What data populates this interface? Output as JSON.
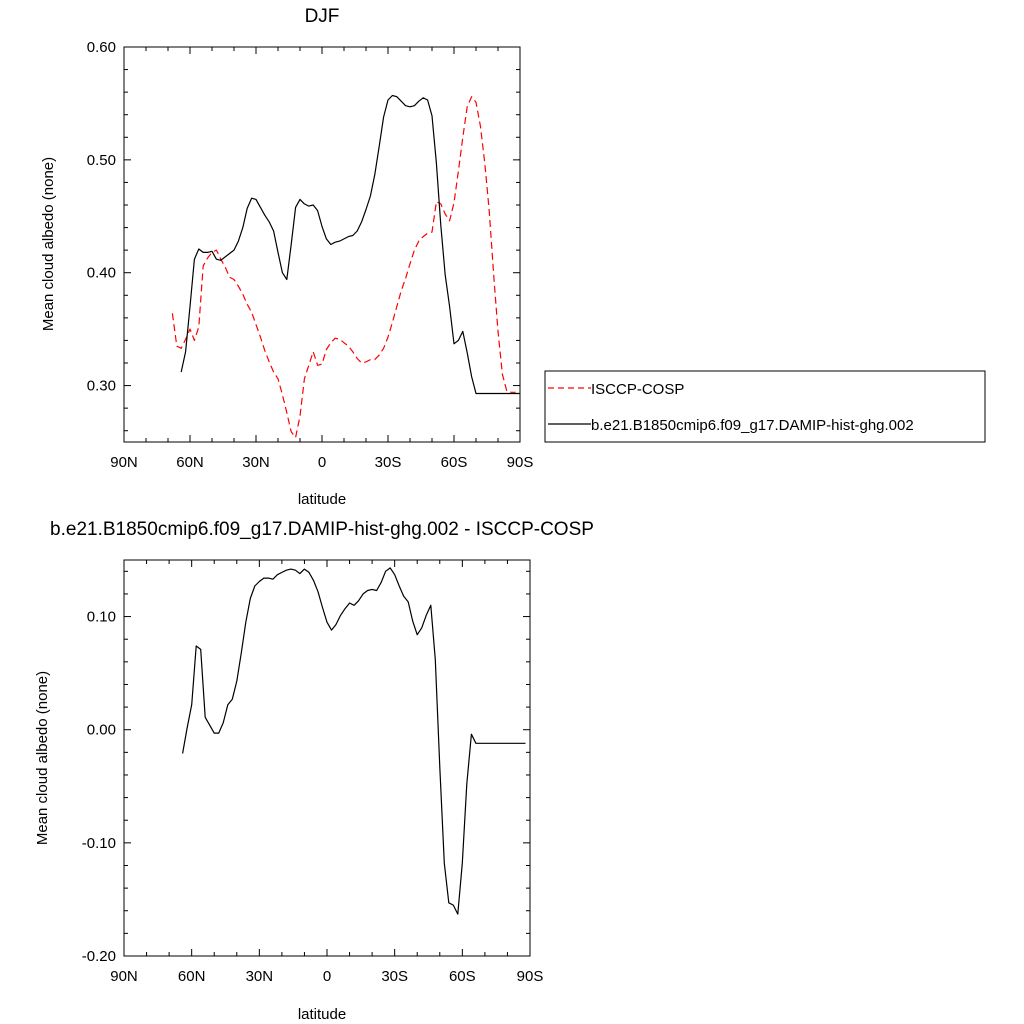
{
  "chart_data": [
    {
      "type": "line",
      "title": "DJF",
      "xlabel": "latitude",
      "ylabel": "Mean cloud albedo (none)",
      "xlim": [
        90,
        -90
      ],
      "ylim": [
        0.25,
        0.6
      ],
      "xticks": [
        90,
        60,
        30,
        0,
        -30,
        -60,
        -90
      ],
      "xtick_labels": [
        "90N",
        "60N",
        "30N",
        "0",
        "30S",
        "60S",
        "90S"
      ],
      "yticks": [
        0.3,
        0.4,
        0.5,
        0.6
      ],
      "ytick_labels": [
        "0.30",
        "0.40",
        "0.50",
        "0.60"
      ],
      "grid": false,
      "legend_position": "right",
      "series": [
        {
          "name": "ISCCP-COSP",
          "color": "#ff0000",
          "dash": "dashed",
          "x": [
            68,
            66,
            64,
            62,
            60,
            58,
            56,
            54,
            52,
            50,
            48,
            46,
            44,
            42,
            40,
            38,
            36,
            34,
            32,
            30,
            28,
            26,
            24,
            22,
            20,
            18,
            16,
            14,
            12,
            10,
            8,
            6,
            4,
            2,
            0,
            -2,
            -4,
            -6,
            -8,
            -10,
            -12,
            -14,
            -16,
            -18,
            -20,
            -22,
            -24,
            -26,
            -28,
            -30,
            -32,
            -34,
            -36,
            -38,
            -40,
            -42,
            -44,
            -46,
            -48,
            -50,
            -52,
            -54,
            -56,
            -58,
            -60,
            -62,
            -64,
            -66,
            -68,
            -70,
            -72,
            -74,
            -76,
            -78,
            -80,
            -82,
            -84,
            -86,
            -88
          ],
          "y": [
            0.364,
            0.335,
            0.333,
            0.341,
            0.35,
            0.34,
            0.352,
            0.406,
            0.413,
            0.418,
            0.42,
            0.412,
            0.405,
            0.396,
            0.394,
            0.388,
            0.381,
            0.372,
            0.365,
            0.354,
            0.343,
            0.331,
            0.321,
            0.312,
            0.306,
            0.292,
            0.276,
            0.259,
            0.254,
            0.273,
            0.306,
            0.318,
            0.33,
            0.318,
            0.319,
            0.332,
            0.338,
            0.342,
            0.341,
            0.338,
            0.335,
            0.33,
            0.324,
            0.32,
            0.321,
            0.323,
            0.323,
            0.327,
            0.333,
            0.343,
            0.356,
            0.37,
            0.384,
            0.395,
            0.408,
            0.42,
            0.428,
            0.432,
            0.435,
            0.436,
            0.463,
            0.461,
            0.452,
            0.446,
            0.462,
            0.49,
            0.52,
            0.547,
            0.556,
            0.551,
            0.53,
            0.497,
            0.455,
            0.399,
            0.348,
            0.31,
            0.295,
            0.294,
            0.294
          ]
        },
        {
          "name": "b.e21.B1850cmip6.f09_g17.DAMIP-hist-ghg.002",
          "color": "#000000",
          "dash": "solid",
          "x": [
            64,
            62,
            60,
            58,
            56,
            54,
            52,
            50,
            48,
            46,
            44,
            42,
            40,
            38,
            36,
            34,
            32,
            30,
            28,
            26,
            24,
            22,
            20,
            18,
            16,
            14,
            12,
            10,
            8,
            6,
            4,
            2,
            0,
            -2,
            -4,
            -6,
            -8,
            -10,
            -12,
            -14,
            -16,
            -18,
            -20,
            -22,
            -24,
            -26,
            -28,
            -30,
            -32,
            -34,
            -36,
            -38,
            -40,
            -42,
            -44,
            -46,
            -48,
            -50,
            -52,
            -54,
            -56,
            -58,
            -60,
            -62,
            -64,
            -66,
            -68,
            -70,
            -72,
            -74,
            -76,
            -78,
            -80,
            -82,
            -84,
            -86,
            -88,
            -90
          ],
          "y": [
            0.312,
            0.33,
            0.37,
            0.412,
            0.421,
            0.418,
            0.418,
            0.419,
            0.412,
            0.411,
            0.414,
            0.417,
            0.42,
            0.428,
            0.44,
            0.457,
            0.466,
            0.465,
            0.458,
            0.451,
            0.445,
            0.437,
            0.418,
            0.4,
            0.394,
            0.425,
            0.458,
            0.465,
            0.461,
            0.459,
            0.46,
            0.455,
            0.441,
            0.43,
            0.425,
            0.427,
            0.428,
            0.43,
            0.432,
            0.433,
            0.437,
            0.445,
            0.456,
            0.468,
            0.487,
            0.512,
            0.538,
            0.553,
            0.557,
            0.556,
            0.552,
            0.548,
            0.547,
            0.548,
            0.552,
            0.555,
            0.553,
            0.539,
            0.497,
            0.442,
            0.398,
            0.37,
            0.337,
            0.34,
            0.348,
            0.329,
            0.308,
            0.293,
            0.293,
            0.293,
            0.293,
            0.293,
            0.293,
            0.293,
            0.293,
            0.293,
            0.293,
            0.293
          ]
        }
      ]
    },
    {
      "type": "line",
      "title": "b.e21.B1850cmip6.f09_g17.DAMIP-hist-ghg.002 - ISCCP-COSP",
      "xlabel": "latitude",
      "ylabel": "Mean cloud albedo (none)",
      "xlim": [
        90,
        -90
      ],
      "ylim": [
        -0.2,
        0.15
      ],
      "xticks": [
        90,
        60,
        30,
        0,
        -30,
        -60,
        -90
      ],
      "xtick_labels": [
        "90N",
        "60N",
        "30N",
        "0",
        "30S",
        "60S",
        "90S"
      ],
      "yticks": [
        -0.2,
        -0.1,
        0.0,
        0.1
      ],
      "ytick_labels": [
        "-0.20",
        "-0.10",
        "0.00",
        "0.10"
      ],
      "grid": false,
      "series": [
        {
          "color": "#000000",
          "dash": "solid",
          "x": [
            64,
            62,
            60,
            58,
            56,
            54,
            52,
            50,
            48,
            46,
            44,
            42,
            40,
            38,
            36,
            34,
            32,
            30,
            28,
            26,
            24,
            22,
            20,
            18,
            16,
            14,
            12,
            10,
            8,
            6,
            4,
            2,
            0,
            -2,
            -4,
            -6,
            -8,
            -10,
            -12,
            -14,
            -16,
            -18,
            -20,
            -22,
            -24,
            -26,
            -28,
            -30,
            -32,
            -34,
            -36,
            -38,
            -40,
            -42,
            -44,
            -46,
            -48,
            -50,
            -52,
            -54,
            -56,
            -58,
            -60,
            -62,
            -64,
            -66,
            -68,
            -70,
            -72,
            -74,
            -76,
            -78,
            -80,
            -82,
            -84,
            -86,
            -88
          ],
          "y": [
            -0.021,
            0.002,
            0.022,
            0.074,
            0.071,
            0.011,
            0.004,
            -0.003,
            -0.003,
            0.006,
            0.022,
            0.027,
            0.043,
            0.068,
            0.095,
            0.116,
            0.127,
            0.131,
            0.134,
            0.134,
            0.133,
            0.137,
            0.139,
            0.141,
            0.142,
            0.141,
            0.138,
            0.142,
            0.139,
            0.132,
            0.122,
            0.108,
            0.095,
            0.088,
            0.093,
            0.101,
            0.107,
            0.112,
            0.11,
            0.114,
            0.12,
            0.123,
            0.124,
            0.123,
            0.13,
            0.14,
            0.143,
            0.137,
            0.127,
            0.118,
            0.113,
            0.096,
            0.084,
            0.09,
            0.101,
            0.11,
            0.062,
            -0.033,
            -0.118,
            -0.153,
            -0.155,
            -0.163,
            -0.118,
            -0.048,
            -0.004,
            -0.012,
            -0.012,
            -0.012,
            -0.012,
            -0.012,
            -0.012,
            -0.012,
            -0.012,
            -0.012,
            -0.012,
            -0.012,
            -0.012
          ]
        }
      ]
    }
  ]
}
